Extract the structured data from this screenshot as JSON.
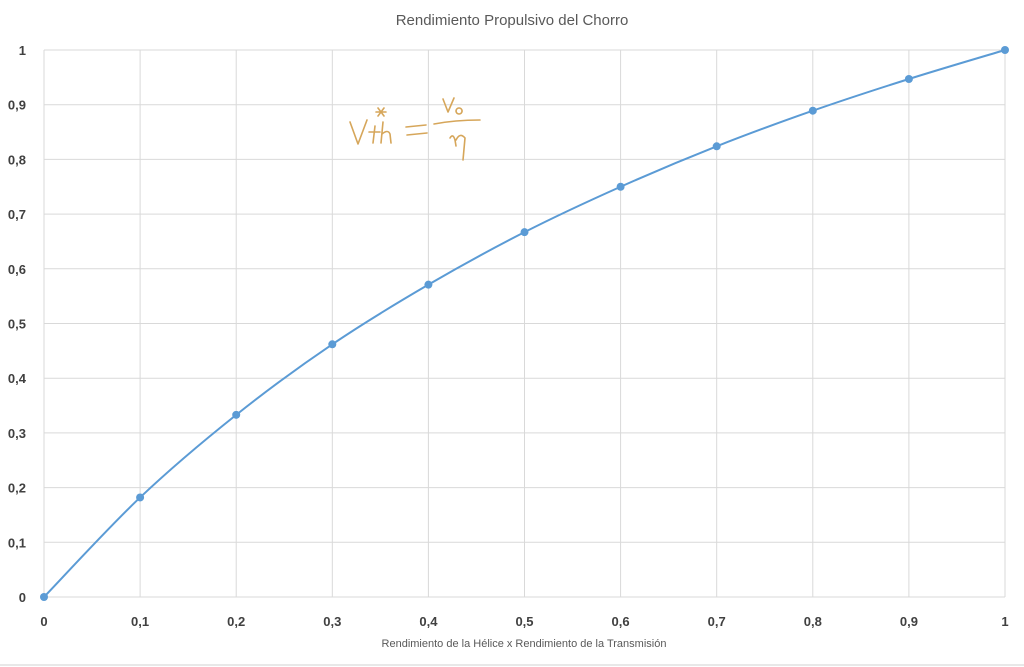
{
  "chart_data": {
    "type": "line",
    "title": "Rendimiento Propulsivo del Chorro",
    "xlabel": "Rendimiento de la Hélice x Rendimiento de la Transmisión",
    "ylabel": "",
    "xlim": [
      0,
      1
    ],
    "ylim": [
      0,
      1
    ],
    "grid": true,
    "legend": "none",
    "x_tick_labels": [
      "0",
      "0,1",
      "0,2",
      "0,3",
      "0,4",
      "0,5",
      "0,6",
      "0,7",
      "0,8",
      "0,9",
      "1"
    ],
    "y_tick_labels": [
      "0",
      "0,1",
      "0,2",
      "0,3",
      "0,4",
      "0,5",
      "0,6",
      "0,7",
      "0,8",
      "0,9",
      "1"
    ],
    "x": [
      0,
      0.1,
      0.2,
      0.3,
      0.4,
      0.5,
      0.6,
      0.7,
      0.8,
      0.9,
      1
    ],
    "series": [
      {
        "values": [
          0,
          0.182,
          0.333,
          0.462,
          0.571,
          0.667,
          0.75,
          0.824,
          0.889,
          0.947,
          1
        ],
        "color": "#5b9bd5"
      }
    ],
    "annotation": {
      "kind": "handwritten-formula",
      "color": "#d6a65a"
    }
  }
}
